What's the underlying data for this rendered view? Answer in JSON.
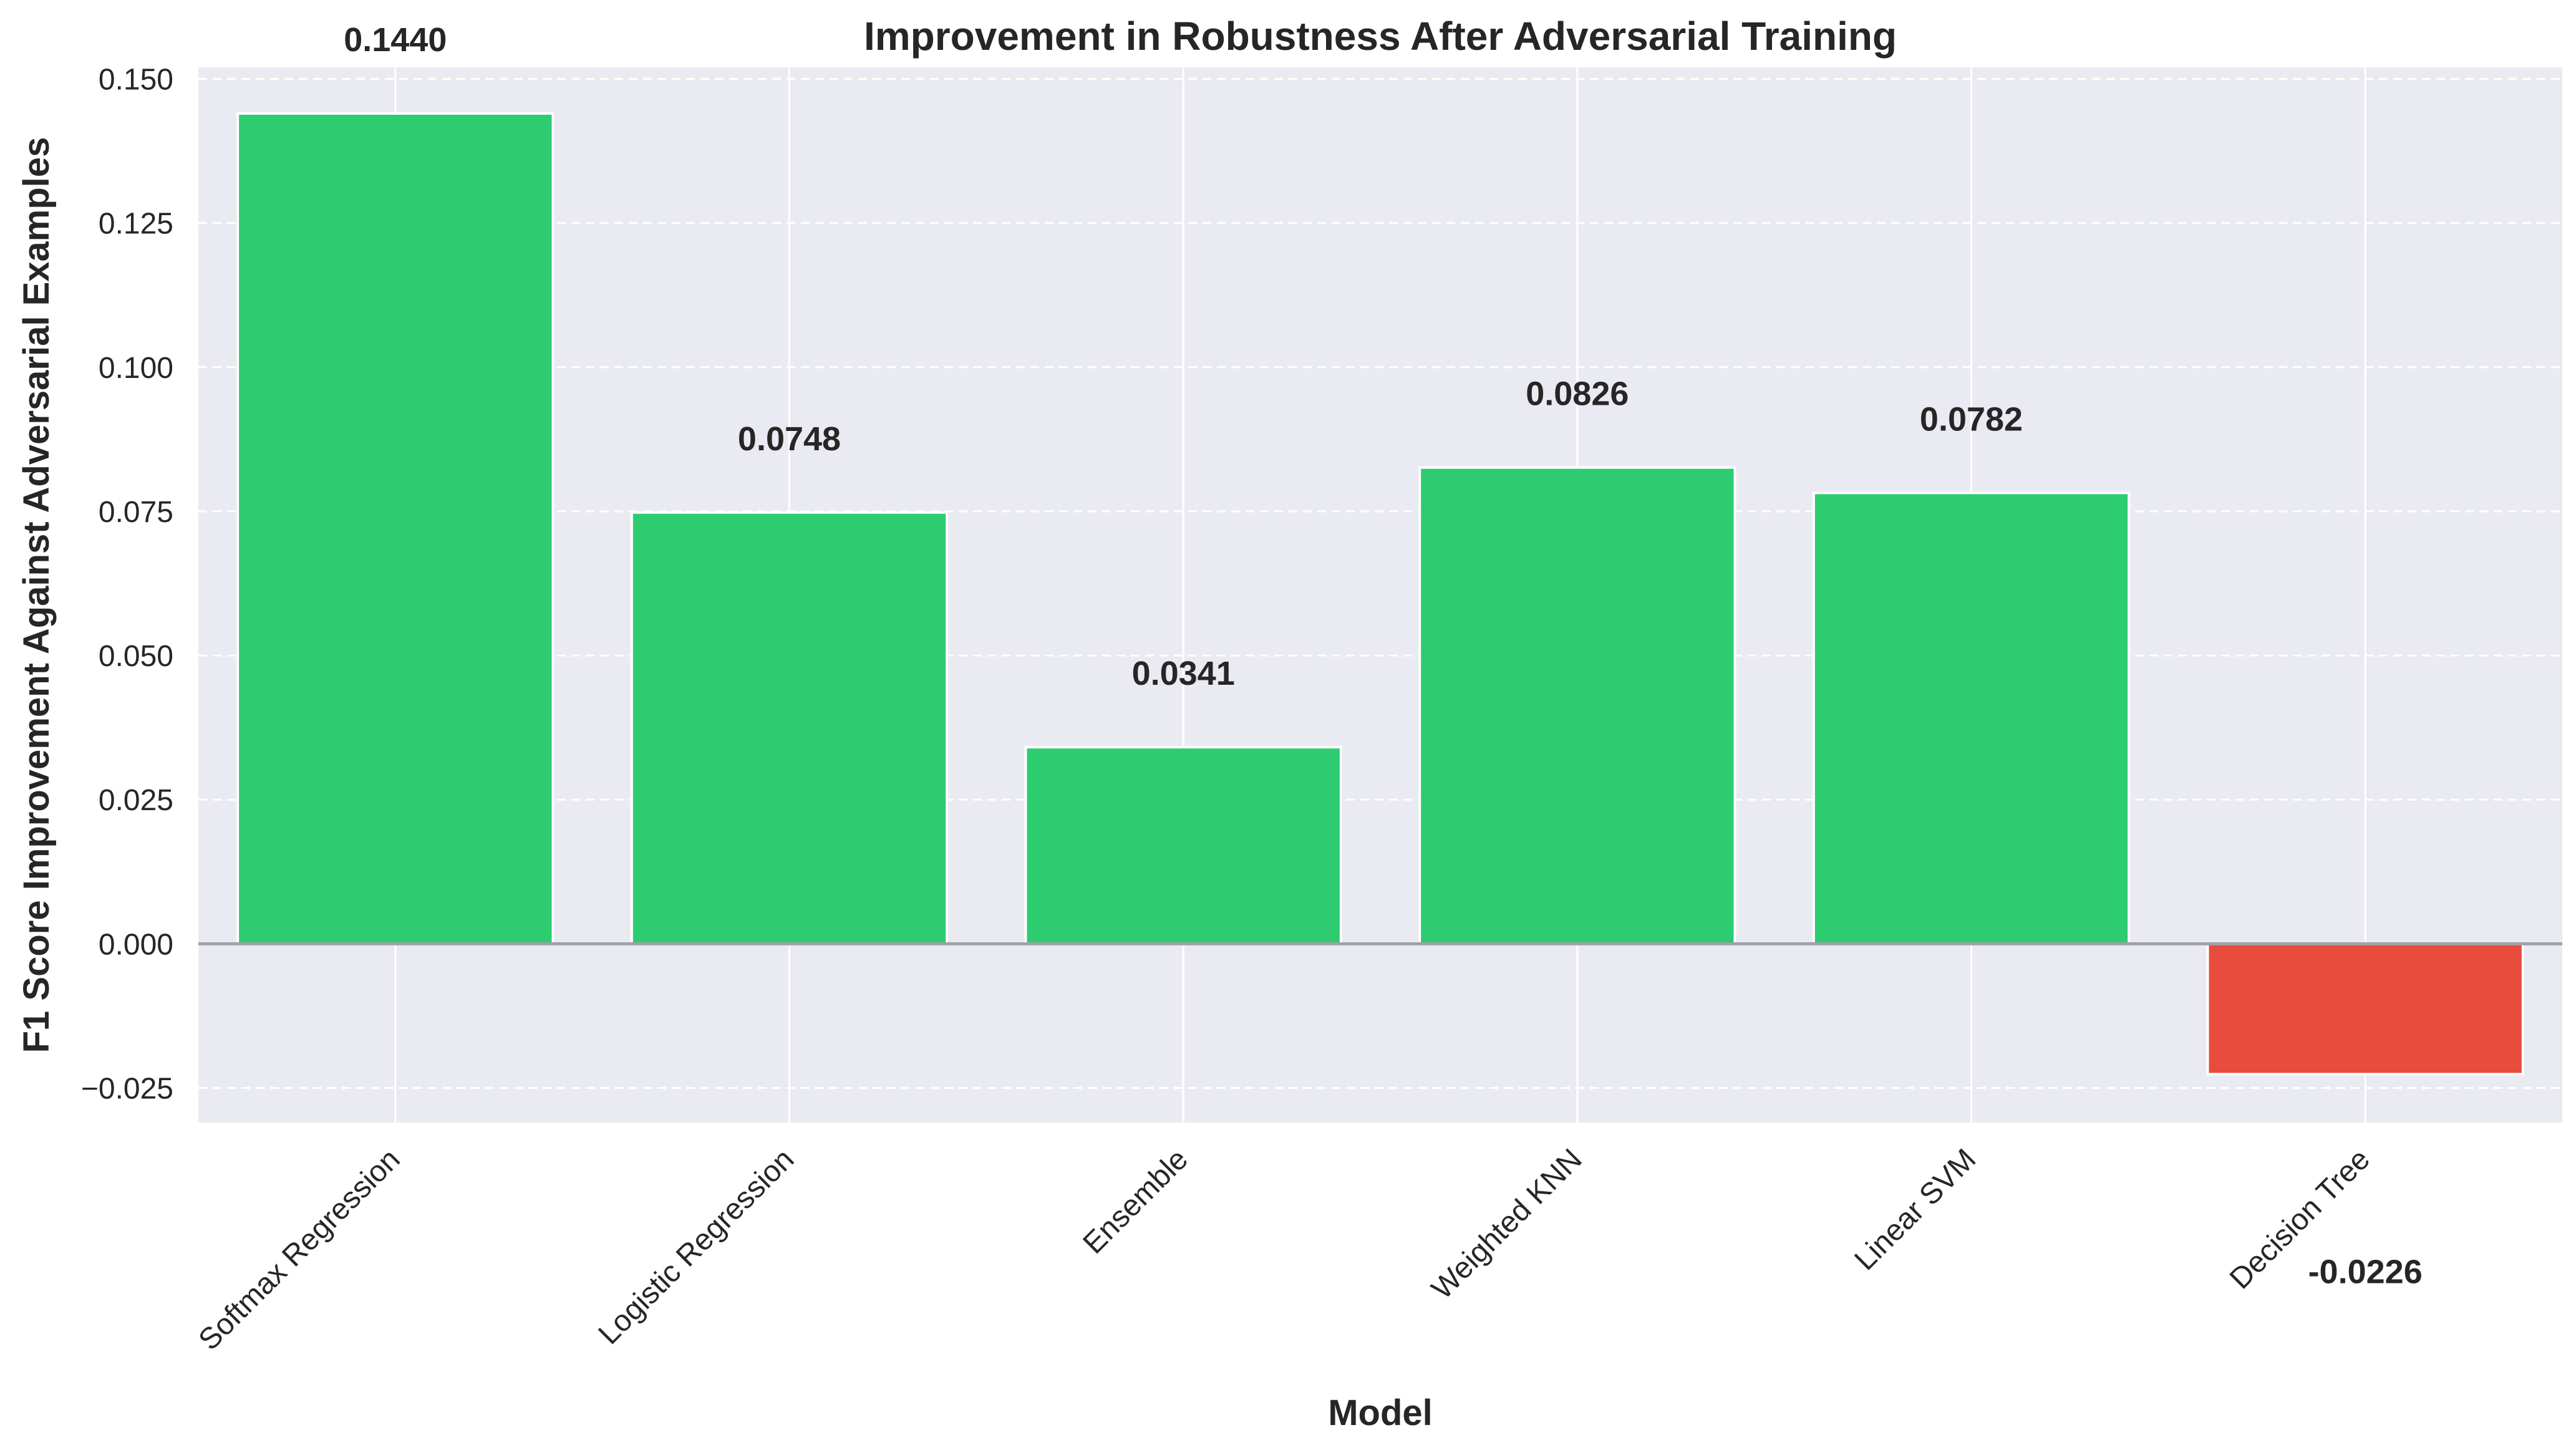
{
  "chart_data": {
    "type": "bar",
    "title": "Improvement in Robustness After Adversarial Training",
    "xlabel": "Model",
    "ylabel": "F1 Score Improvement Against Adversarial Examples",
    "categories": [
      "Softmax Regression",
      "Logistic Regression",
      "Ensemble",
      "Weighted KNN",
      "Linear SVM",
      "Decision Tree"
    ],
    "values": [
      0.144,
      0.0748,
      0.0341,
      0.0826,
      0.0782,
      -0.0226
    ],
    "value_labels": [
      "0.1440",
      "0.0748",
      "0.0341",
      "0.0826",
      "0.0782",
      "-0.0226"
    ],
    "yticks": [
      -0.025,
      0.0,
      0.025,
      0.05,
      0.075,
      0.1,
      0.125,
      0.15
    ],
    "ytick_labels": [
      "−0.025",
      "0.000",
      "0.025",
      "0.050",
      "0.075",
      "0.100",
      "0.125",
      "0.150"
    ],
    "ylim": [
      -0.031,
      0.152
    ],
    "grid": true,
    "colors": {
      "positive": "#2ecc71",
      "negative": "#e74c3c",
      "background": "#eaeaf2",
      "grid": "#ffffff",
      "zero_line": "#a0a0a8",
      "text": "#262626"
    }
  }
}
